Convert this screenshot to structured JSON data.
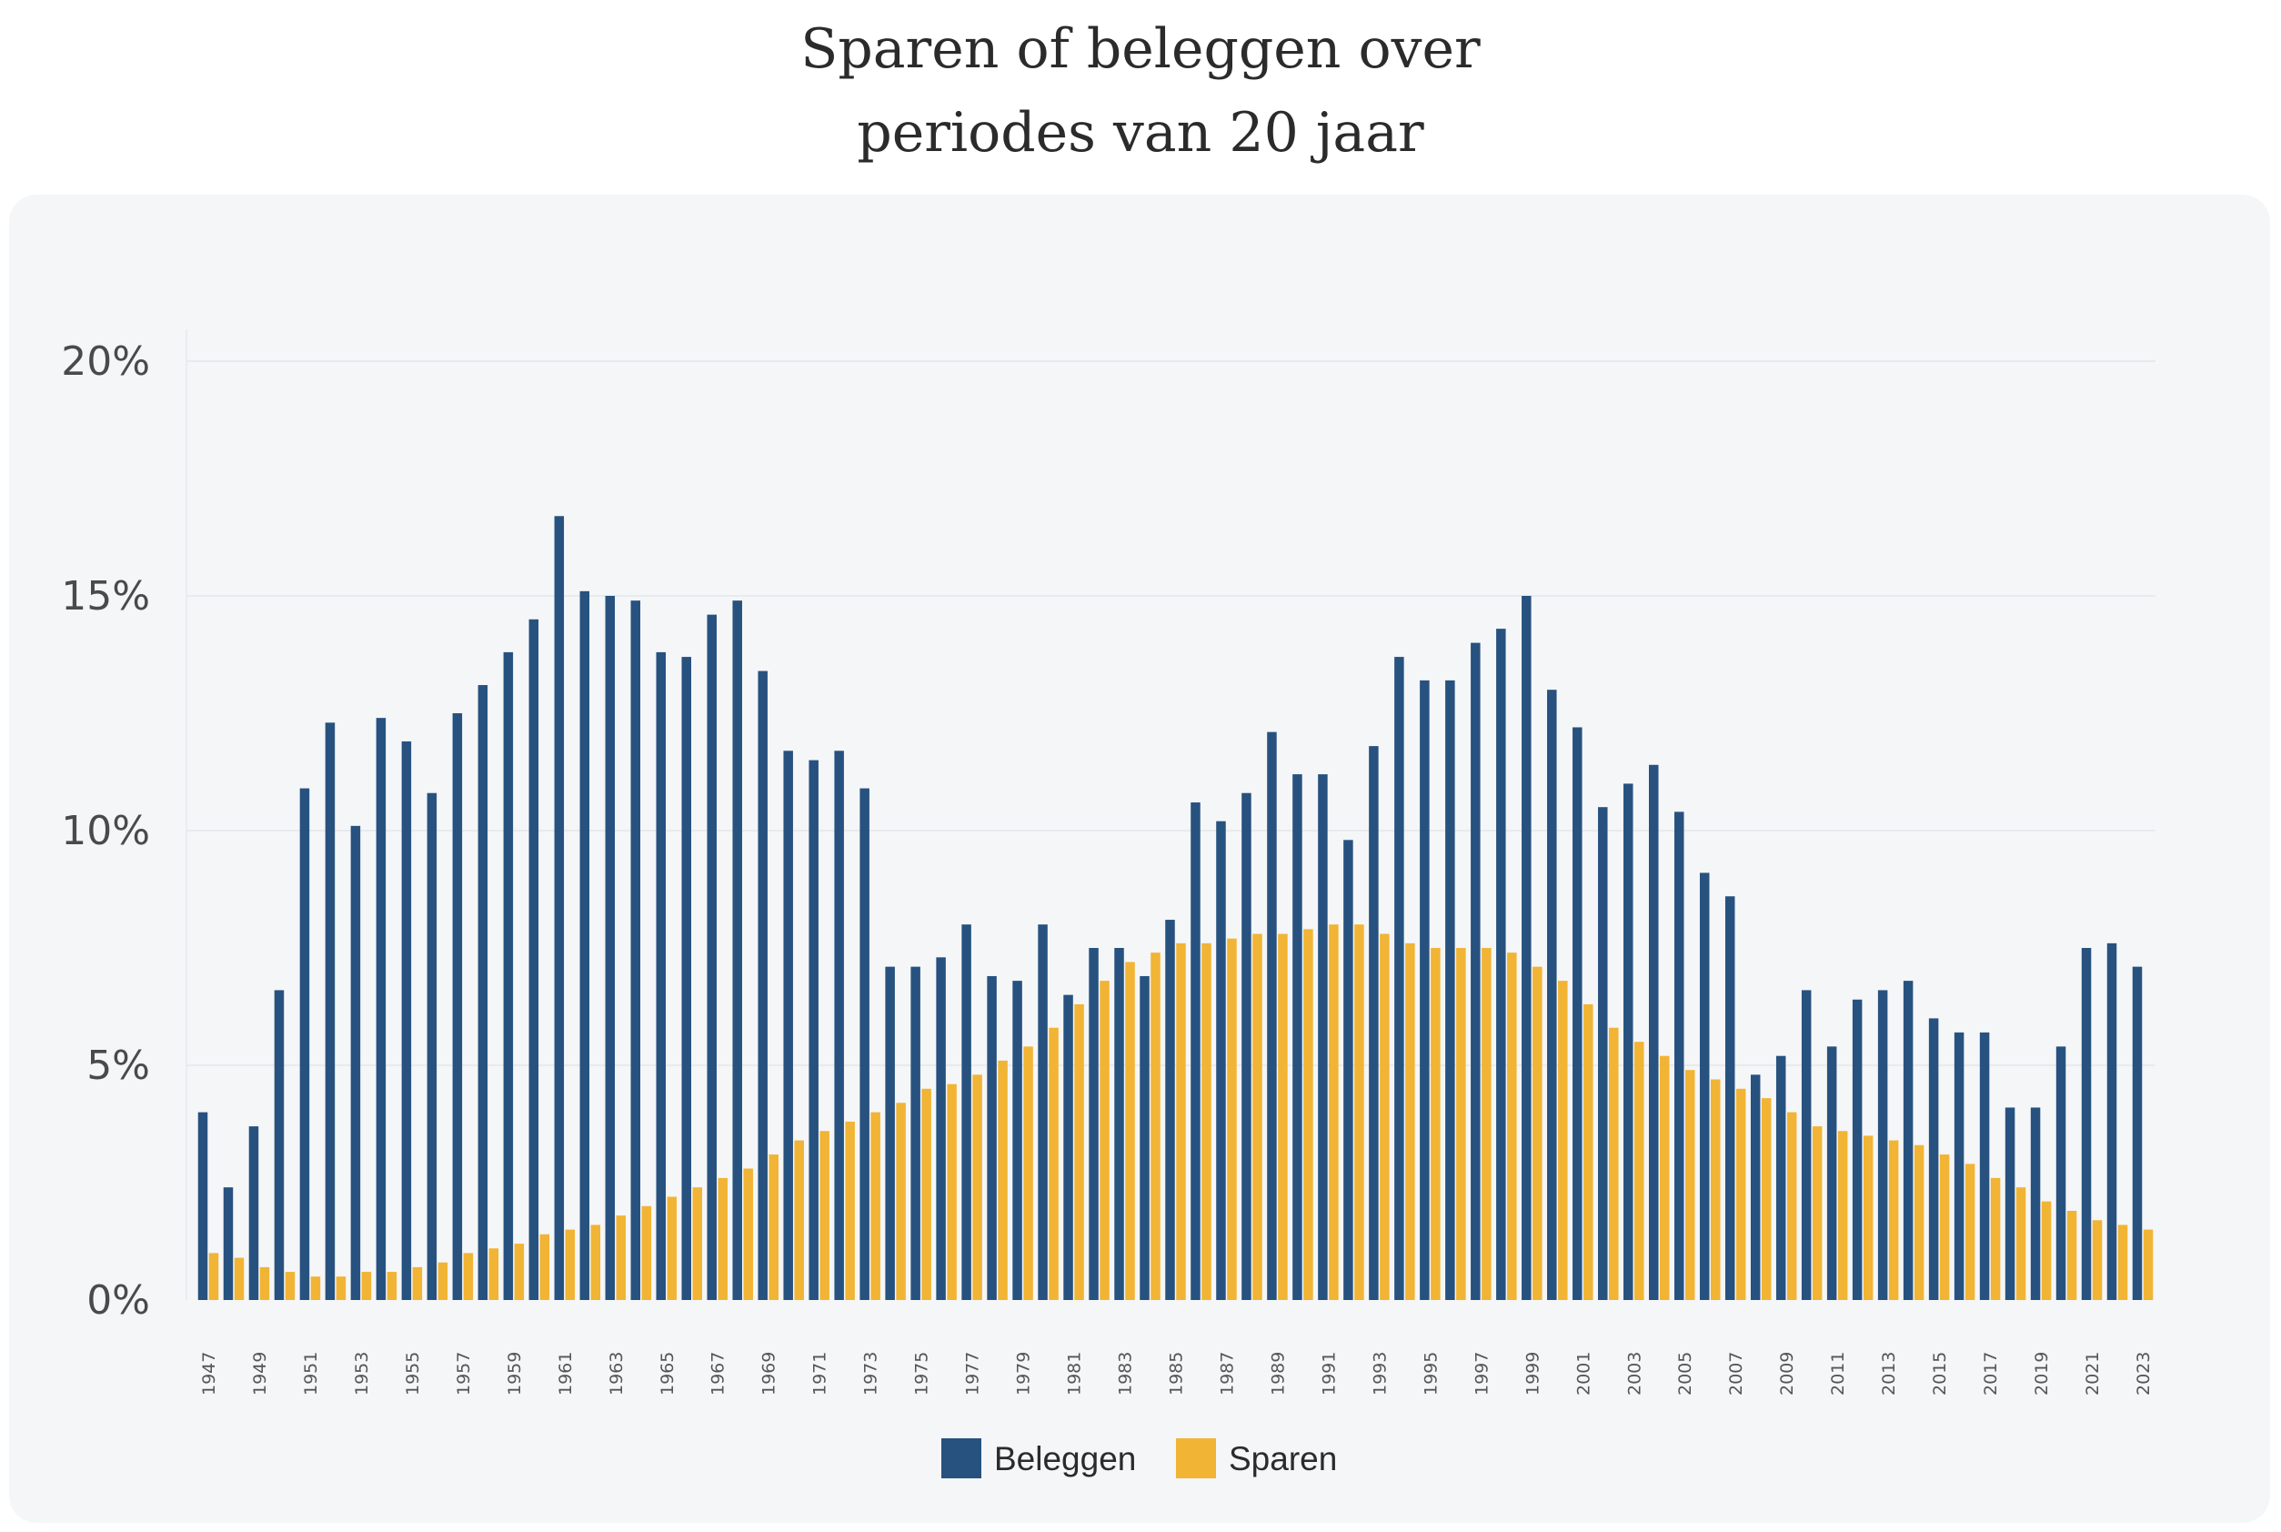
{
  "title": {
    "line1": "Sparen of beleggen over",
    "line2": "periodes van 20 jaar"
  },
  "chart_data": {
    "type": "bar",
    "title": "Sparen of beleggen over periodes van 20 jaar",
    "xlabel": "",
    "ylabel": "",
    "ylim": [
      0,
      20
    ],
    "yticks": [
      0,
      5,
      10,
      15,
      20
    ],
    "ytick_labels": [
      "0%",
      "5%",
      "10%",
      "15%",
      "20%"
    ],
    "grid": true,
    "legend": "bottom-center",
    "categories": [
      "1947",
      "1948",
      "1949",
      "1950",
      "1951",
      "1952",
      "1953",
      "1954",
      "1955",
      "1956",
      "1957",
      "1958",
      "1959",
      "1960",
      "1961",
      "1962",
      "1963",
      "1964",
      "1965",
      "1966",
      "1967",
      "1968",
      "1969",
      "1970",
      "1971",
      "1972",
      "1973",
      "1974",
      "1975",
      "1976",
      "1977",
      "1978",
      "1979",
      "1980",
      "1981",
      "1982",
      "1983",
      "1984",
      "1985",
      "1986",
      "1987",
      "1988",
      "1989",
      "1990",
      "1991",
      "1992",
      "1993",
      "1994",
      "1995",
      "1996",
      "1997",
      "1998",
      "1999",
      "2000",
      "2001",
      "2002",
      "2003",
      "2004",
      "2005",
      "2006",
      "2007",
      "2008",
      "2009",
      "2010",
      "2011",
      "2012",
      "2013",
      "2014",
      "2015",
      "2016",
      "2017",
      "2018",
      "2019",
      "2020",
      "2021",
      "2022",
      "2023"
    ],
    "x_tick_labels": [
      "1947",
      "1949",
      "1951",
      "1953",
      "1955",
      "1957",
      "1959",
      "1961",
      "1963",
      "1965",
      "1967",
      "1969",
      "1971",
      "1973",
      "1975",
      "1977",
      "1979",
      "1981",
      "1983",
      "1985",
      "1987",
      "1989",
      "1991",
      "1993",
      "1995",
      "1997",
      "1999",
      "2001",
      "2003",
      "2005",
      "2007",
      "2009",
      "2011",
      "2013",
      "2015",
      "2017",
      "2019",
      "2021",
      "2023"
    ],
    "series": [
      {
        "name": "Beleggen",
        "color": "#27527f",
        "values": [
          4.0,
          2.4,
          3.7,
          6.6,
          10.9,
          12.3,
          10.1,
          12.4,
          11.9,
          10.8,
          12.5,
          13.1,
          13.8,
          14.5,
          16.7,
          15.1,
          15.0,
          14.9,
          13.8,
          13.7,
          14.6,
          14.9,
          13.4,
          11.7,
          11.5,
          11.7,
          10.9,
          7.1,
          7.1,
          7.3,
          8.0,
          6.9,
          6.8,
          8.0,
          6.5,
          7.5,
          7.5,
          6.9,
          8.1,
          10.6,
          10.2,
          10.8,
          12.1,
          11.2,
          11.2,
          9.8,
          11.8,
          13.7,
          13.2,
          13.2,
          14.0,
          14.3,
          15.0,
          13.0,
          12.2,
          10.5,
          11.0,
          11.4,
          10.4,
          9.1,
          8.6,
          4.8,
          5.2,
          6.6,
          5.4,
          6.4,
          6.6,
          6.8,
          6.0,
          5.7,
          5.7,
          4.1,
          4.1,
          5.4,
          7.5,
          7.6,
          7.1
        ]
      },
      {
        "name": "Sparen",
        "color": "#f1b434",
        "values": [
          1.0,
          0.9,
          0.7,
          0.6,
          0.5,
          0.5,
          0.6,
          0.6,
          0.7,
          0.8,
          1.0,
          1.1,
          1.2,
          1.4,
          1.5,
          1.6,
          1.8,
          2.0,
          2.2,
          2.4,
          2.6,
          2.8,
          3.1,
          3.4,
          3.6,
          3.8,
          4.0,
          4.2,
          4.5,
          4.6,
          4.8,
          5.1,
          5.4,
          5.8,
          6.3,
          6.8,
          7.2,
          7.4,
          7.6,
          7.6,
          7.7,
          7.8,
          7.8,
          7.9,
          8.0,
          8.0,
          7.8,
          7.6,
          7.5,
          7.5,
          7.5,
          7.4,
          7.1,
          6.8,
          6.3,
          5.8,
          5.5,
          5.2,
          4.9,
          4.7,
          4.5,
          4.3,
          4.0,
          3.7,
          3.6,
          3.5,
          3.4,
          3.3,
          3.1,
          2.9,
          2.6,
          2.4,
          2.1,
          1.9,
          1.7,
          1.6,
          1.5
        ]
      }
    ]
  },
  "legend": [
    {
      "label": "Beleggen",
      "color": "#27527f"
    },
    {
      "label": "Sparen",
      "color": "#f1b434"
    }
  ]
}
